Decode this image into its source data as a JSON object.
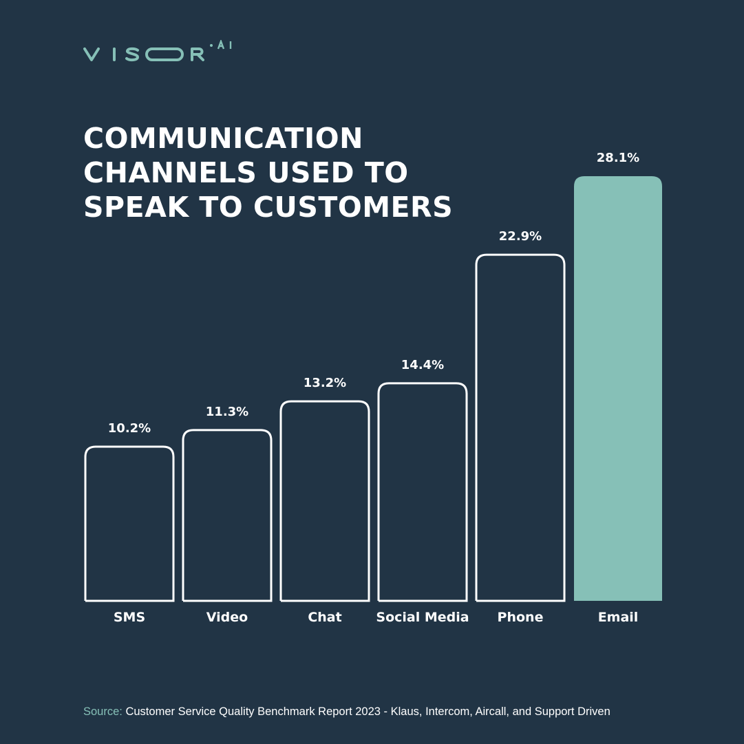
{
  "logo": {
    "text": "VISOR",
    "suffix": ".AI",
    "color": "#86c0b7"
  },
  "colors": {
    "background": "#213445",
    "accent": "#86c0b7",
    "outline": "#ffffff"
  },
  "source": {
    "prefix": "Source:",
    "text": "Customer Service Quality Benchmark Report 2023 - Klaus, Intercom, Aircall, and Support Driven"
  },
  "chart_data": {
    "type": "bar",
    "title": [
      "COMMUNICATION",
      "CHANNELS USED TO",
      "SPEAK TO CUSTOMERS"
    ],
    "categories": [
      "SMS",
      "Video",
      "Chat",
      "Social Media",
      "Phone",
      "Email"
    ],
    "values": [
      10.2,
      11.3,
      13.2,
      14.4,
      22.9,
      28.1
    ],
    "value_labels": [
      "10.2%",
      "11.3%",
      "13.2%",
      "14.4%",
      "22.9%",
      "28.1%"
    ],
    "unit": "%",
    "highlighted_category": "Email",
    "ylim": [
      0,
      28.1
    ],
    "grid": false,
    "legend": "none"
  }
}
